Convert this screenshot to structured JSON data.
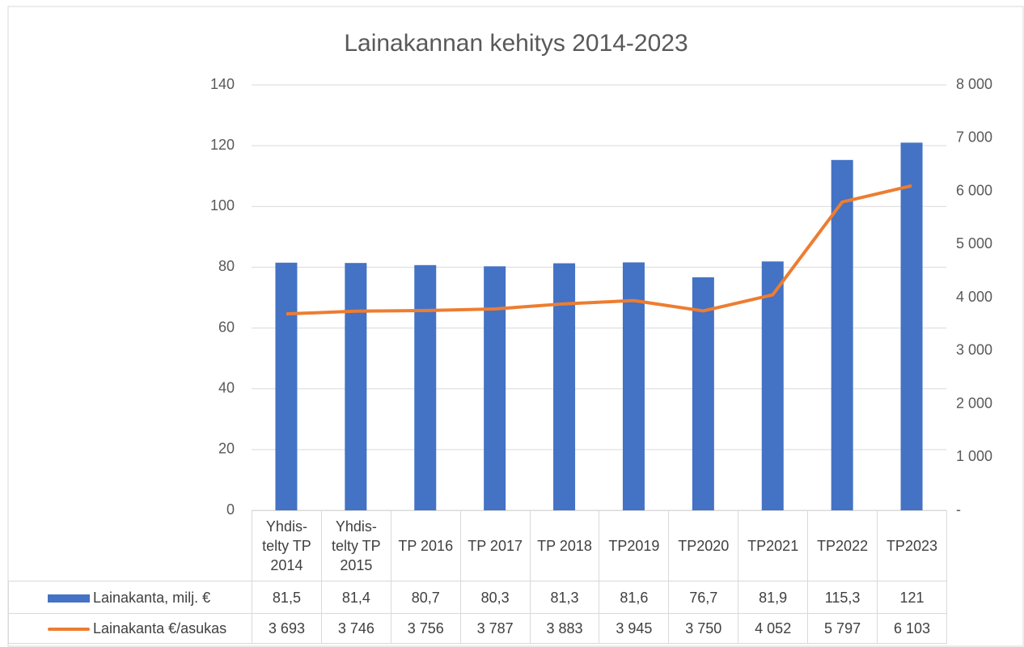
{
  "chart_data": {
    "type": "bar_line",
    "title": "Lainakannan kehitys 2014-2023",
    "categories": [
      "Yhdis-telty TP 2014",
      "Yhdis-telty TP 2015",
      "TP 2016",
      "TP 2017",
      "TP 2018",
      "TP2019",
      "TP2020",
      "TP2021",
      "TP2022",
      "TP2023"
    ],
    "series": [
      {
        "name": "Lainakanta, milj. €",
        "type": "bar",
        "color": "#4472c4",
        "values": [
          81.5,
          81.4,
          80.7,
          80.3,
          81.3,
          81.6,
          76.7,
          81.9,
          115.3,
          121
        ],
        "value_labels": [
          "81,5",
          "81,4",
          "80,7",
          "80,3",
          "81,3",
          "81,6",
          "76,7",
          "81,9",
          "115,3",
          "121"
        ]
      },
      {
        "name": "Lainakanta €/asukas",
        "type": "line",
        "axis": "y2",
        "color": "#ed7d31",
        "values": [
          3693,
          3746,
          3756,
          3787,
          3883,
          3945,
          3750,
          4052,
          5797,
          6103
        ],
        "value_labels": [
          "3 693",
          "3 746",
          "3 756",
          "3 787",
          "3 883",
          "3 945",
          "3 750",
          "4 052",
          "5 797",
          "6 103"
        ]
      }
    ],
    "ylim": [
      0,
      140
    ],
    "yticks": [
      0,
      20,
      40,
      60,
      80,
      100,
      120,
      140
    ],
    "y2lim": [
      0,
      8000
    ],
    "y2ticks": [
      {
        "value": 0,
        "label": "-"
      },
      {
        "value": 1000,
        "label": "1 000"
      },
      {
        "value": 2000,
        "label": "2 000"
      },
      {
        "value": 3000,
        "label": "3 000"
      },
      {
        "value": 4000,
        "label": "4 000"
      },
      {
        "value": 5000,
        "label": "5 000"
      },
      {
        "value": 6000,
        "label": "6 000"
      },
      {
        "value": 7000,
        "label": "7 000"
      },
      {
        "value": 8000,
        "label": "8 000"
      }
    ],
    "grid": true
  }
}
